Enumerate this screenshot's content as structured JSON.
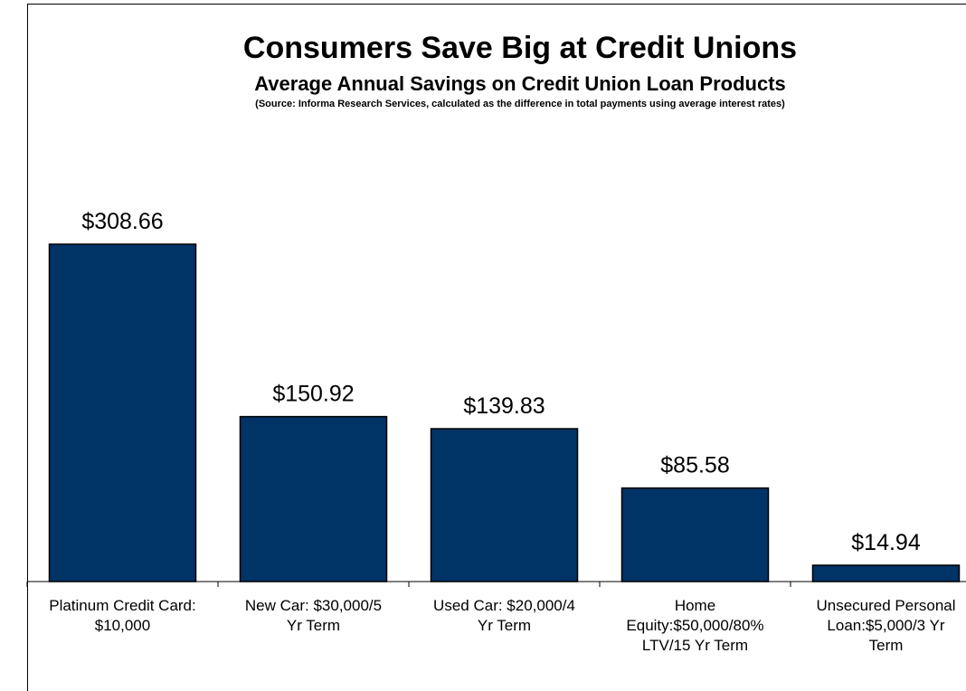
{
  "chart_data": {
    "type": "bar",
    "title": "Consumers Save Big at Credit Unions",
    "subtitle": "Average Annual Savings on Credit Union Loan Products",
    "source_note": "(Source: Informa Research Services, calculated as the difference in total payments using average interest rates)",
    "categories": [
      "Platinum Credit Card: $10,000",
      "New Car: $30,000/5 Yr Term",
      "Used Car: $20,000/4 Yr Term",
      "Home Equity:$50,000/80% LTV/15 Yr Term",
      "Unsecured Personal Loan:$5,000/3 Yr Term"
    ],
    "category_lines": [
      [
        "Platinum Credit Card:",
        "$10,000"
      ],
      [
        "New Car: $30,000/5",
        "Yr Term"
      ],
      [
        "Used Car: $20,000/4",
        "Yr Term"
      ],
      [
        "Home",
        "Equity:$50,000/80%",
        "LTV/15 Yr Term"
      ],
      [
        "Unsecured Personal",
        "Loan:$5,000/3 Yr",
        "Term"
      ]
    ],
    "values": [
      308.66,
      150.92,
      139.83,
      85.58,
      14.94
    ],
    "value_labels": [
      "$308.66",
      "$150.92",
      "$139.83",
      "$85.58",
      "$14.94"
    ],
    "xlabel": "",
    "ylabel": "",
    "ylim": [
      0,
      308.66
    ],
    "grid": false,
    "bar_color": "#003366"
  }
}
